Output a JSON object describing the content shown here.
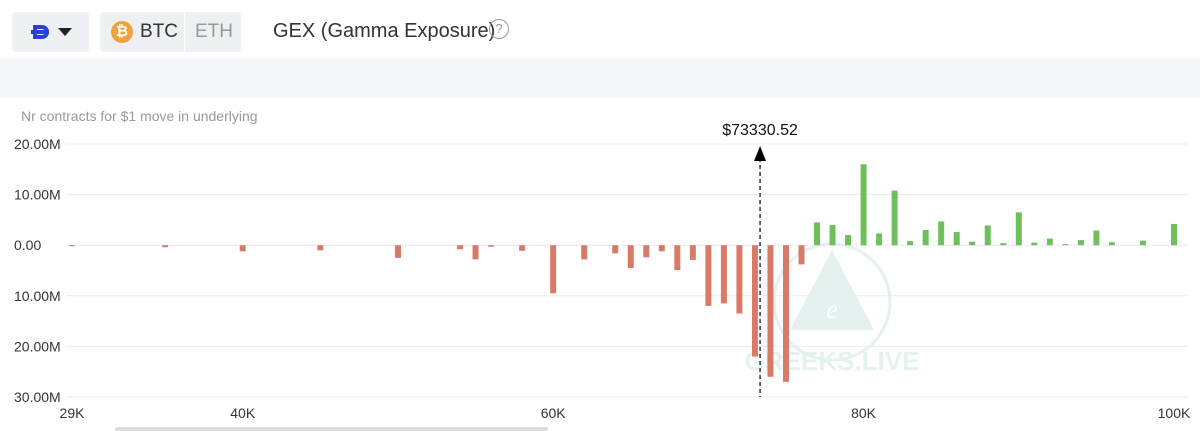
{
  "header": {
    "exchange_icon": "deribit-logo-icon",
    "coins": [
      {
        "label": "BTC",
        "icon": "btc-icon",
        "selected": true
      },
      {
        "label": "ETH",
        "selected": false
      }
    ],
    "title": "GEX (Gamma Exposure)",
    "help_icon": "question-circle-icon",
    "btc_symbol": "₿"
  },
  "chart_subtitle": "Nr contracts for $1 move in underlying",
  "watermark": "GREEKS.LIVE",
  "colors": {
    "positive": "#6fbf5e",
    "negative": "#d97a68",
    "marker": "#000000"
  },
  "chart_data": {
    "type": "bar",
    "ylabel": "Nr contracts for $1 move in underlying",
    "xlim": [
      29000,
      100000
    ],
    "ylim": [
      -30000000,
      20000000
    ],
    "y_ticks": [
      20000000,
      10000000,
      0,
      -10000000,
      -20000000,
      -30000000
    ],
    "y_tick_labels": [
      "20.00M",
      "10.00M",
      "0.00",
      "10.00M",
      "20.00M",
      "30.00M"
    ],
    "x_ticks": [
      29000,
      40000,
      60000,
      80000,
      100000
    ],
    "x_tick_labels": [
      "29K",
      "40K",
      "60K",
      "80K",
      "100K"
    ],
    "grid": true,
    "spot": {
      "value": 73330.52,
      "label": "$73330.52"
    },
    "x": [
      29000,
      35000,
      40000,
      45000,
      50000,
      54000,
      55000,
      56000,
      58000,
      60000,
      62000,
      64000,
      65000,
      66000,
      67000,
      68000,
      69000,
      70000,
      71000,
      72000,
      73000,
      74000,
      75000,
      76000,
      77000,
      78000,
      79000,
      80000,
      81000,
      82000,
      83000,
      84000,
      85000,
      86000,
      87000,
      88000,
      89000,
      90000,
      91000,
      92000,
      93000,
      94000,
      95000,
      96000,
      98000,
      100000
    ],
    "values": [
      -200000,
      -400000,
      -1200000,
      -1000000,
      -2500000,
      -800000,
      -2800000,
      -300000,
      -1100000,
      -9500000,
      -2800000,
      -1600000,
      -4500000,
      -2400000,
      -1200000,
      -4900000,
      -2900000,
      -12000000,
      -11500000,
      -13500000,
      -22000000,
      -26000000,
      -27000000,
      -3800000,
      4500000,
      4000000,
      2000000,
      16000000,
      2300000,
      10800000,
      800000,
      3000000,
      4700000,
      2600000,
      700000,
      3900000,
      400000,
      6500000,
      500000,
      1300000,
      200000,
      1000000,
      2900000,
      600000,
      900000,
      4200000
    ]
  }
}
